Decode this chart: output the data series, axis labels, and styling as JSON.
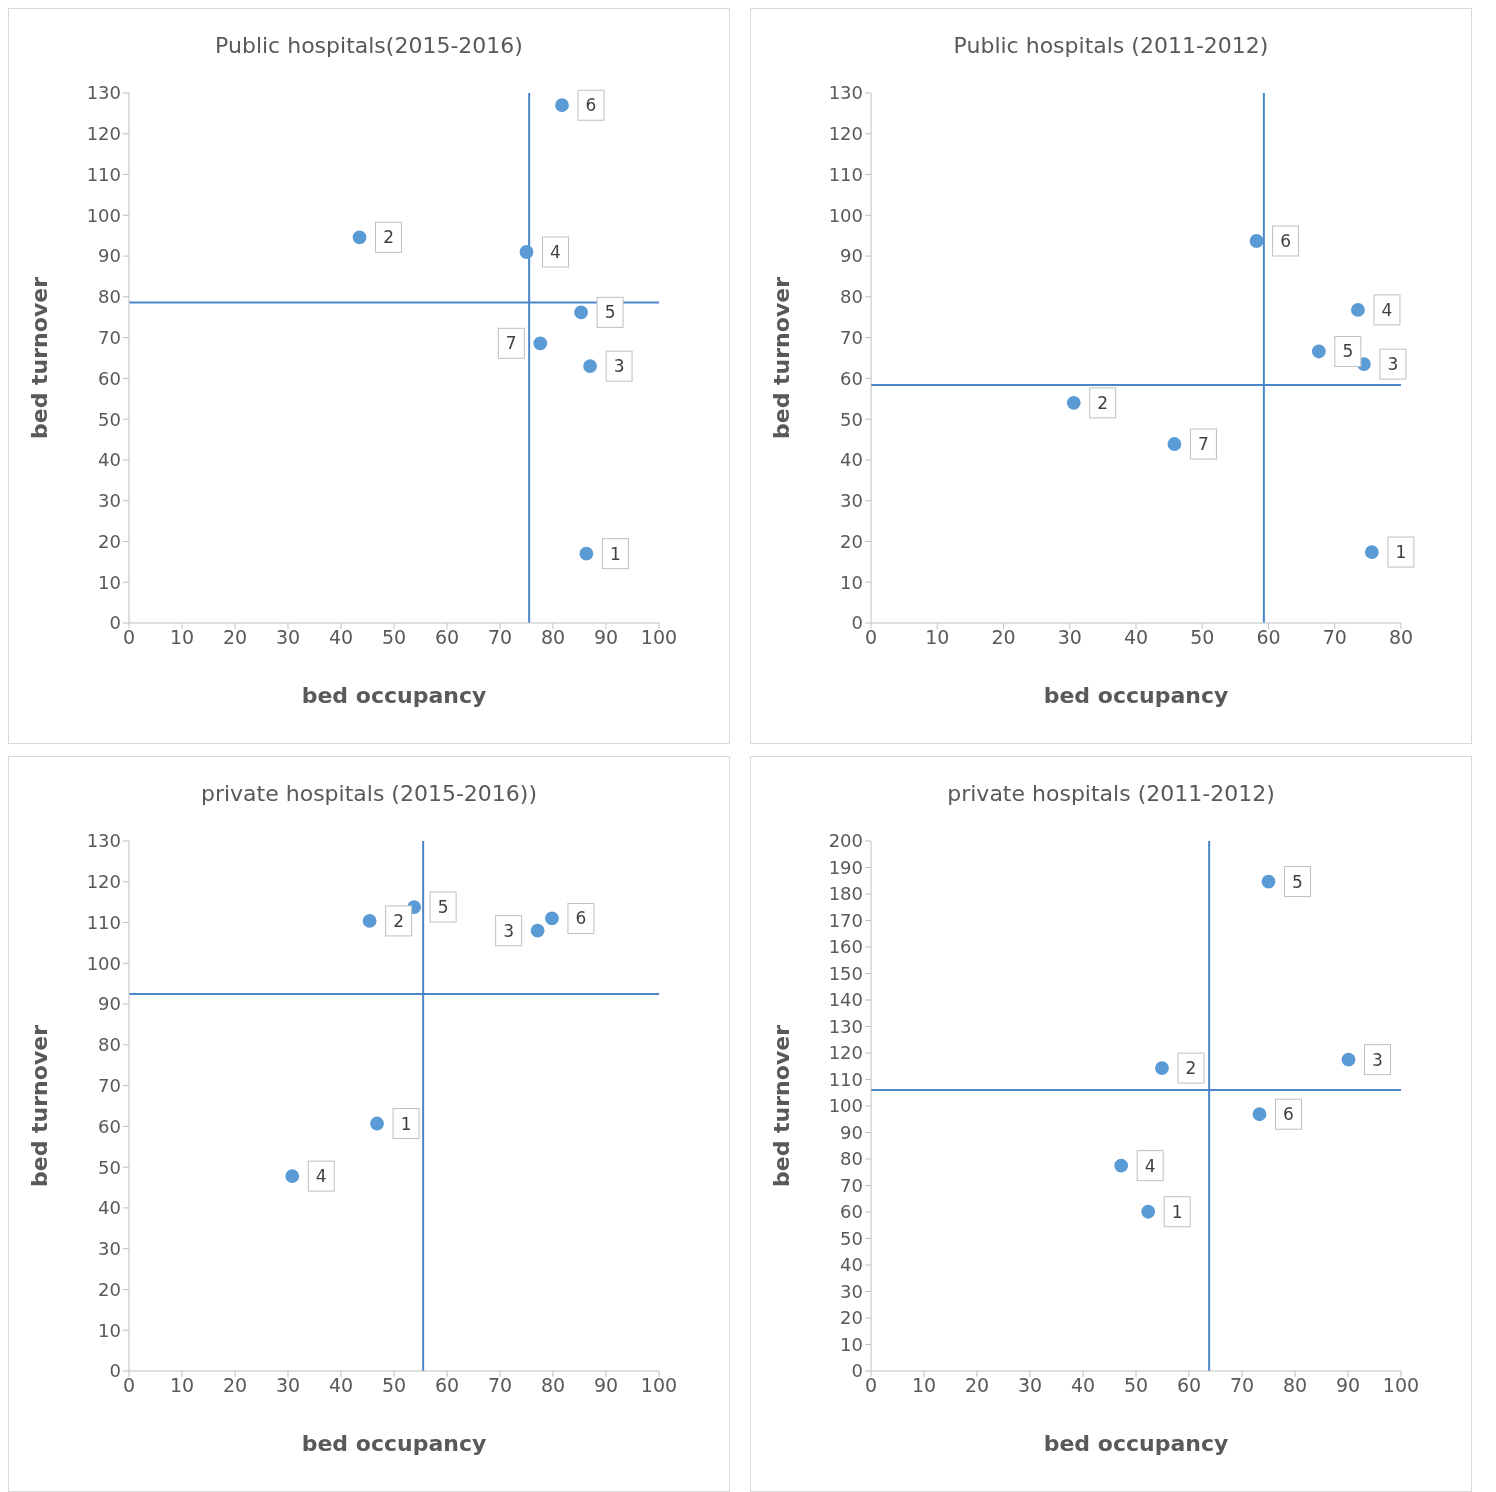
{
  "chart_data": [
    {
      "type": "scatter",
      "title": "Public hospitals(2015-2016)",
      "xlabel": "bed occupancy",
      "ylabel": "bed turnover",
      "x": [
        86.3,
        43.5,
        87,
        75,
        85.3,
        81.7,
        77.6
      ],
      "values": [
        17,
        94.6,
        63,
        91,
        76.2,
        127,
        68.6
      ],
      "color": "#5b9bd5",
      "marker": "circle",
      "xlim": [
        0,
        100
      ],
      "xticks": [
        0,
        10,
        20,
        30,
        40,
        50,
        60,
        70,
        80,
        90,
        100
      ],
      "ylim": [
        0,
        130
      ],
      "yticks": [
        0,
        10,
        20,
        30,
        40,
        50,
        60,
        70,
        80,
        90,
        100,
        110,
        120,
        130
      ],
      "ref_lines": [
        {
          "axis": "x",
          "value": 75.5,
          "color": "#4a86c8"
        },
        {
          "axis": "y",
          "value": 78.6,
          "color": "#4a86c8"
        }
      ],
      "annotations": [
        {
          "text": "1",
          "x": 86.3,
          "y": 17
        },
        {
          "text": "2",
          "x": 43.5,
          "y": 94.6
        },
        {
          "text": "3",
          "x": 87,
          "y": 63
        },
        {
          "text": "4",
          "x": 75,
          "y": 91
        },
        {
          "text": "5",
          "x": 85.3,
          "y": 76.2
        },
        {
          "text": "6",
          "x": 81.7,
          "y": 127
        },
        {
          "text": "7",
          "x": 77.6,
          "y": 68.6
        }
      ]
    },
    {
      "type": "scatter",
      "title": "Public hospitals (2011-2012)",
      "xlabel": "bed occupancy",
      "ylabel": "bed turnover",
      "x": [
        75.6,
        30.6,
        74.4,
        73.5,
        67.6,
        58.2,
        45.8
      ],
      "values": [
        17.4,
        54,
        63.5,
        76.8,
        66.6,
        93.7,
        43.9
      ],
      "color": "#5b9bd5",
      "marker": "circle",
      "xlim": [
        0,
        80
      ],
      "xticks": [
        0,
        10,
        20,
        30,
        40,
        50,
        60,
        70,
        80
      ],
      "ylim": [
        0,
        130
      ],
      "yticks": [
        0,
        10,
        20,
        30,
        40,
        50,
        60,
        70,
        80,
        90,
        100,
        110,
        120,
        130
      ],
      "ref_lines": [
        {
          "axis": "x",
          "value": 59.3,
          "color": "#4a86c8"
        },
        {
          "axis": "y",
          "value": 58.4,
          "color": "#4a86c8"
        }
      ],
      "annotations": [
        {
          "text": "1",
          "x": 75.6,
          "y": 17.4
        },
        {
          "text": "2",
          "x": 30.6,
          "y": 54
        },
        {
          "text": "3",
          "x": 74.4,
          "y": 63.5
        },
        {
          "text": "4",
          "x": 73.5,
          "y": 76.8
        },
        {
          "text": "5",
          "x": 67.6,
          "y": 66.6
        },
        {
          "text": "6",
          "x": 58.2,
          "y": 93.7
        },
        {
          "text": "7",
          "x": 45.8,
          "y": 43.9
        }
      ]
    },
    {
      "type": "scatter",
      "title": "private hospitals (2015-2016))",
      "xlabel": "bed occupancy",
      "ylabel": "bed turnover",
      "x": [
        46.8,
        45.4,
        77.1,
        30.8,
        53.8,
        79.8
      ],
      "values": [
        60.7,
        110.4,
        108,
        47.8,
        113.8,
        111
      ],
      "color": "#5b9bd5",
      "marker": "circle",
      "xlim": [
        0,
        100
      ],
      "xticks": [
        0,
        10,
        20,
        30,
        40,
        50,
        60,
        70,
        80,
        90,
        100
      ],
      "ylim": [
        0,
        130
      ],
      "yticks": [
        0,
        10,
        20,
        30,
        40,
        50,
        60,
        70,
        80,
        90,
        100,
        110,
        120,
        130
      ],
      "ref_lines": [
        {
          "axis": "x",
          "value": 55.5,
          "color": "#4a86c8"
        },
        {
          "axis": "y",
          "value": 92.5,
          "color": "#4a86c8"
        }
      ],
      "annotations": [
        {
          "text": "1",
          "x": 46.8,
          "y": 60.7
        },
        {
          "text": "2",
          "x": 45.4,
          "y": 110.4
        },
        {
          "text": "3",
          "x": 77.1,
          "y": 108
        },
        {
          "text": "4",
          "x": 30.8,
          "y": 47.8
        },
        {
          "text": "5",
          "x": 53.8,
          "y": 113.8
        },
        {
          "text": "6",
          "x": 79.8,
          "y": 111
        }
      ]
    },
    {
      "type": "scatter",
      "title": "private hospitals (2011-2012)",
      "xlabel": "bed occupancy",
      "ylabel": "bed turnover",
      "x": [
        52.3,
        54.9,
        90.1,
        47.2,
        75,
        73.3
      ],
      "values": [
        60.1,
        114.3,
        117.5,
        77.5,
        184.7,
        96.9
      ],
      "color": "#5b9bd5",
      "marker": "circle",
      "xlim": [
        0,
        100
      ],
      "xticks": [
        0,
        10,
        20,
        30,
        40,
        50,
        60,
        70,
        80,
        90,
        100
      ],
      "ylim": [
        0,
        200
      ],
      "yticks": [
        0,
        10,
        20,
        30,
        40,
        50,
        60,
        70,
        80,
        90,
        100,
        110,
        120,
        130,
        140,
        150,
        160,
        170,
        180,
        190,
        200
      ],
      "ref_lines": [
        {
          "axis": "x",
          "value": 63.8,
          "color": "#4a86c8"
        },
        {
          "axis": "y",
          "value": 106,
          "color": "#4a86c8"
        }
      ],
      "annotations": [
        {
          "text": "1",
          "x": 52.3,
          "y": 60.1
        },
        {
          "text": "2",
          "x": 54.9,
          "y": 114.3
        },
        {
          "text": "3",
          "x": 90.1,
          "y": 117.5
        },
        {
          "text": "4",
          "x": 47.2,
          "y": 77.5
        },
        {
          "text": "5",
          "x": 75,
          "y": 184.7
        },
        {
          "text": "6",
          "x": 73.3,
          "y": 96.9
        }
      ]
    }
  ]
}
